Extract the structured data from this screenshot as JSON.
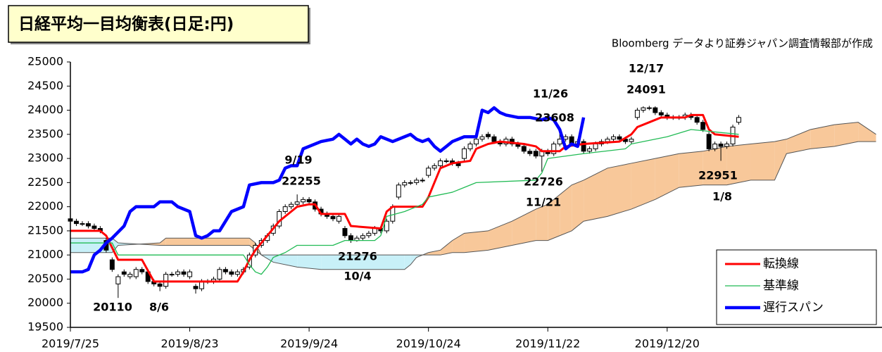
{
  "chart_data": {
    "type": "ichimoku",
    "title": "日経平均一目均衡表(日足:円)",
    "source": "Bloomberg データより証券ジャパン調査情報部が作成",
    "ylim": [
      19500,
      25000
    ],
    "yticks": [
      19500,
      20000,
      20500,
      21000,
      21500,
      22000,
      22500,
      23000,
      23500,
      24000,
      24500,
      25000
    ],
    "xlim": [
      0,
      136
    ],
    "xticks": [
      {
        "value": 0,
        "label": "2019/7/25"
      },
      {
        "value": 20,
        "label": "2019/8/23"
      },
      {
        "value": 40,
        "label": "2019/9/24"
      },
      {
        "value": 60,
        "label": "2019/10/24"
      },
      {
        "value": 80,
        "label": "2019/11/22"
      },
      {
        "value": 100,
        "label": "2019/12/20"
      }
    ],
    "candles": {
      "up_color": "#ffffff",
      "down_color": "#000000",
      "x": [
        0,
        1,
        2,
        3,
        4,
        5,
        6,
        7,
        8,
        9,
        10,
        11,
        12,
        13,
        14,
        15,
        16,
        17,
        18,
        19,
        20,
        21,
        22,
        23,
        24,
        25,
        26,
        27,
        28,
        29,
        30,
        31,
        32,
        33,
        34,
        35,
        36,
        37,
        38,
        39,
        40,
        41,
        42,
        43,
        44,
        45,
        46,
        47,
        48,
        49,
        50,
        51,
        52,
        53,
        54,
        55,
        56,
        57,
        58,
        59,
        60,
        61,
        62,
        63,
        64,
        65,
        66,
        67,
        68,
        69,
        70,
        71,
        72,
        73,
        74,
        75,
        76,
        77,
        78,
        79,
        80,
        81,
        82,
        83,
        84,
        85,
        86,
        87,
        88,
        89,
        90,
        91,
        92,
        93,
        94,
        95,
        96,
        97,
        98,
        99,
        100,
        101,
        102,
        103,
        104,
        105,
        106,
        107,
        108,
        109,
        110,
        111,
        112
      ],
      "open": [
        21750,
        21700,
        21650,
        21650,
        21600,
        21550,
        21300,
        20900,
        20400,
        20650,
        20550,
        20550,
        20700,
        20650,
        20450,
        20400,
        20350,
        20600,
        20600,
        20650,
        20550,
        20350,
        20300,
        20450,
        20450,
        20500,
        20700,
        20650,
        20600,
        20650,
        20750,
        21000,
        21200,
        21300,
        21450,
        21600,
        21900,
        22000,
        22050,
        22100,
        22150,
        22100,
        21950,
        21850,
        21800,
        21700,
        21550,
        21400,
        21300,
        21350,
        21400,
        21450,
        21550,
        21500,
        21700,
        22200,
        22450,
        22500,
        22500,
        22550,
        22650,
        22800,
        22850,
        22950,
        22950,
        22900,
        23000,
        23200,
        23300,
        23400,
        23500,
        23450,
        23350,
        23300,
        23400,
        23300,
        23250,
        23150,
        23150,
        23050,
        23150,
        23100,
        23300,
        23400,
        23450,
        23300,
        23350,
        23150,
        23200,
        23300,
        23350,
        23400,
        23450,
        23400,
        23350,
        23850,
        24000,
        24050,
        24050,
        23950,
        23900,
        23850,
        23850,
        23850,
        23900,
        23850,
        23750,
        23500,
        23200,
        23300,
        23250,
        23300,
        23750
      ],
      "high": [
        21800,
        21750,
        21700,
        21700,
        21650,
        21600,
        21350,
        20950,
        20600,
        20700,
        20650,
        20750,
        20750,
        20700,
        20500,
        20450,
        20650,
        20650,
        20700,
        20700,
        20700,
        20400,
        20500,
        20500,
        20550,
        20750,
        20750,
        20700,
        20700,
        20750,
        21050,
        21250,
        21350,
        21450,
        21650,
        21950,
        22050,
        22100,
        22255,
        22200,
        22200,
        22150,
        22000,
        21900,
        21850,
        21850,
        21600,
        21450,
        21400,
        21450,
        21500,
        21600,
        21600,
        21750,
        22050,
        22500,
        22550,
        22550,
        22600,
        22600,
        22850,
        22900,
        23000,
        23000,
        23000,
        22950,
        23250,
        23350,
        23450,
        23500,
        23550,
        23500,
        23400,
        23450,
        23450,
        23350,
        23300,
        23200,
        23200,
        23200,
        23200,
        23350,
        23608,
        23500,
        23500,
        23400,
        23400,
        23250,
        23350,
        23400,
        23450,
        23500,
        23500,
        23450,
        23450,
        24050,
        24080,
        24091,
        24080,
        24000,
        23950,
        23900,
        23900,
        23950,
        23950,
        23900,
        23800,
        23550,
        23350,
        23350,
        23350,
        23700,
        23900
      ],
      "low": [
        21650,
        21600,
        21600,
        21550,
        21500,
        21450,
        21050,
        20650,
        20110,
        20550,
        20500,
        20500,
        20600,
        20400,
        20350,
        20250,
        20300,
        20550,
        20550,
        20550,
        20500,
        20200,
        20250,
        20400,
        20400,
        20450,
        20600,
        20550,
        20550,
        20600,
        20700,
        20950,
        21150,
        21250,
        21400,
        21550,
        21850,
        21950,
        22000,
        22050,
        22050,
        21900,
        21800,
        21750,
        21700,
        21650,
        21350,
        21250,
        21276,
        21300,
        21350,
        21400,
        21450,
        21450,
        21650,
        22150,
        22400,
        22450,
        22450,
        22500,
        22600,
        22750,
        22800,
        22900,
        22850,
        22800,
        22950,
        23150,
        23250,
        23350,
        23400,
        23300,
        23250,
        23250,
        23250,
        23200,
        23100,
        23050,
        23000,
        22726,
        23050,
        23050,
        23250,
        23350,
        23250,
        23250,
        23100,
        23100,
        23150,
        23250,
        23300,
        23350,
        23350,
        23300,
        23300,
        23800,
        23950,
        24000,
        23900,
        23850,
        23800,
        23800,
        23800,
        23800,
        23800,
        23700,
        23550,
        23150,
        23150,
        22951,
        23200,
        23250,
        23700
      ],
      "close": [
        21700,
        21650,
        21650,
        21600,
        21550,
        21500,
        21100,
        20700,
        20550,
        20600,
        20600,
        20700,
        20650,
        20450,
        20400,
        20350,
        20600,
        20600,
        20650,
        20600,
        20650,
        20300,
        20450,
        20450,
        20500,
        20700,
        20650,
        20600,
        20650,
        20700,
        21000,
        21200,
        21300,
        21400,
        21600,
        21900,
        22000,
        22050,
        22100,
        22150,
        22100,
        21950,
        21850,
        21800,
        21750,
        21800,
        21400,
        21300,
        21350,
        21400,
        21450,
        21550,
        21500,
        21700,
        22000,
        22450,
        22500,
        22500,
        22550,
        22550,
        22800,
        22850,
        22950,
        22950,
        22900,
        22850,
        23200,
        23300,
        23400,
        23450,
        23450,
        23350,
        23300,
        23400,
        23300,
        23250,
        23150,
        23100,
        23050,
        23150,
        23100,
        23300,
        23400,
        23450,
        23300,
        23350,
        23150,
        23200,
        23300,
        23350,
        23400,
        23450,
        23400,
        23350,
        23400,
        24000,
        24050,
        24050,
        23950,
        23900,
        23850,
        23850,
        23850,
        23900,
        23850,
        23750,
        23600,
        23200,
        23300,
        23250,
        23300,
        23650,
        23850
      ]
    },
    "cloud": {
      "line_color": "#555555",
      "a_above_color": "#f8c89a",
      "b_above_color": "#c8f0f8",
      "x": [
        0,
        7,
        8,
        15,
        16,
        30,
        31,
        32,
        34,
        38,
        42,
        56,
        57,
        58,
        60,
        62,
        64,
        66,
        70,
        74,
        78,
        80,
        82,
        84,
        86,
        90,
        94,
        98,
        102,
        106,
        110,
        114,
        118,
        120,
        124,
        128,
        132,
        135
      ],
      "span_a": [
        21050,
        21050,
        21200,
        21250,
        21350,
        21350,
        21250,
        21000,
        20850,
        20750,
        20700,
        20700,
        20800,
        20950,
        21050,
        21100,
        21300,
        21450,
        21500,
        21700,
        21950,
        22050,
        22250,
        22450,
        22550,
        22800,
        22900,
        23000,
        23100,
        23150,
        23250,
        23300,
        23350,
        23400,
        23600,
        23700,
        23750,
        23500
      ],
      "span_b": [
        21350,
        21350,
        21250,
        21200,
        21200,
        21200,
        21100,
        21000,
        21000,
        21000,
        21000,
        21000,
        21000,
        21000,
        21000,
        21000,
        21050,
        21050,
        21100,
        21200,
        21300,
        21300,
        21400,
        21500,
        21700,
        21800,
        21950,
        22150,
        22400,
        22450,
        22450,
        22550,
        22550,
        23100,
        23200,
        23250,
        23350,
        23350
      ]
    },
    "series": [
      {
        "name": "転換線",
        "color": "#ff0000",
        "width": 3,
        "x": [
          0,
          5,
          6,
          8,
          12,
          14,
          28,
          29,
          30,
          31,
          33,
          35,
          37,
          38,
          40,
          41,
          42,
          46,
          47,
          52,
          53,
          54,
          59,
          60,
          61,
          62,
          64,
          67,
          68,
          70,
          72,
          76,
          78,
          79,
          82,
          83,
          86,
          92,
          94,
          95,
          97,
          99,
          103,
          104,
          106,
          107,
          108,
          112
        ],
        "values": [
          21500,
          21500,
          21400,
          20900,
          20900,
          20450,
          20450,
          20650,
          20900,
          21100,
          21400,
          21700,
          21900,
          22000,
          22050,
          22050,
          21850,
          21850,
          21600,
          21550,
          21900,
          22000,
          22000,
          22200,
          22500,
          22800,
          22900,
          22950,
          23200,
          23300,
          23350,
          23300,
          23250,
          23150,
          23150,
          23250,
          23300,
          23350,
          23500,
          23650,
          23750,
          23850,
          23850,
          23900,
          23900,
          23600,
          23500,
          23450
        ]
      },
      {
        "name": "基準線",
        "color": "#22bb55",
        "width": 1.3,
        "x": [
          0,
          7,
          8,
          29,
          30,
          31,
          32,
          33,
          34,
          36,
          38,
          44,
          46,
          51,
          52,
          53,
          56,
          59,
          60,
          64,
          66,
          68,
          78,
          79,
          80,
          86,
          93,
          94,
          100,
          104,
          112
        ],
        "values": [
          21250,
          21250,
          21000,
          21000,
          20800,
          20650,
          20600,
          20750,
          20950,
          21050,
          21200,
          21200,
          21300,
          21300,
          21400,
          21800,
          21900,
          22050,
          22200,
          22300,
          22400,
          22500,
          22550,
          22700,
          23000,
          23100,
          23200,
          23300,
          23450,
          23600,
          23500
        ]
      },
      {
        "name": "遅行スパン",
        "color": "#0000ff",
        "width": 4.5,
        "x": [
          0,
          2,
          3,
          4,
          5,
          6,
          7,
          9,
          10,
          11,
          14,
          15,
          17,
          18,
          20,
          21,
          22,
          23,
          24,
          25,
          26,
          27,
          29,
          30,
          32,
          34,
          35,
          36,
          37,
          38,
          39,
          40,
          42,
          44,
          45,
          46,
          47,
          48,
          49,
          50,
          51,
          52,
          54,
          56,
          57,
          58,
          59,
          60,
          61,
          62,
          63,
          64,
          66,
          67,
          68,
          69,
          70,
          71,
          72,
          73,
          75,
          77,
          79,
          80,
          81,
          82,
          83,
          84,
          85,
          86
        ],
        "values": [
          20650,
          20650,
          20700,
          21000,
          21100,
          21250,
          21350,
          21600,
          21900,
          22000,
          22000,
          22100,
          22100,
          22000,
          21900,
          21400,
          21350,
          21400,
          21500,
          21500,
          21700,
          21900,
          22000,
          22450,
          22500,
          22500,
          22550,
          22800,
          22850,
          22850,
          23200,
          23250,
          23350,
          23400,
          23500,
          23400,
          23300,
          23400,
          23300,
          23250,
          23300,
          23450,
          23350,
          23450,
          23500,
          23400,
          23350,
          23400,
          23250,
          23150,
          23250,
          23350,
          23450,
          23450,
          23450,
          24000,
          23950,
          24050,
          23950,
          23900,
          23850,
          23850,
          23800,
          23850,
          23800,
          23600,
          23200,
          23300,
          23250,
          23850
        ]
      }
    ],
    "annotations": [
      {
        "label": "12/17",
        "value": 24091
      },
      {
        "label": "11/26",
        "value": 23608
      },
      {
        "label": "9/19",
        "value": 22255
      },
      {
        "label": "11/21",
        "value": 22726
      },
      {
        "label": "1/8",
        "value": 22951
      },
      {
        "label": "10/4",
        "value": 21276
      },
      {
        "label": "8/6",
        "value": 20110
      }
    ]
  }
}
